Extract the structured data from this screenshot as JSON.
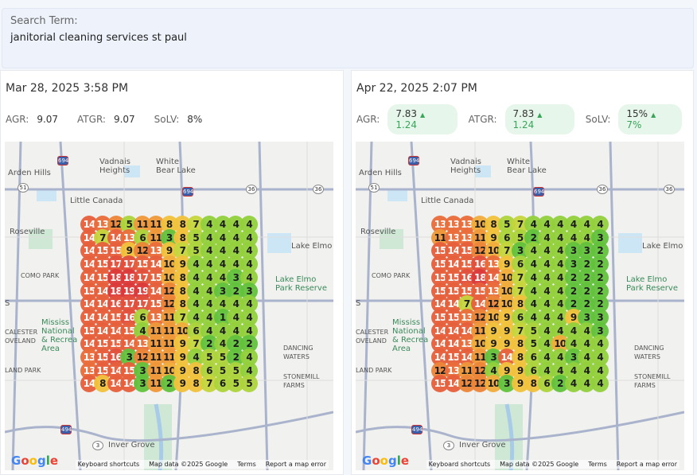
{
  "search": {
    "label": "Search Term:",
    "value": "janitorial cleaning services st paul"
  },
  "panels": [
    {
      "date": "Mar 28, 2025 3:58 PM",
      "stats": [
        {
          "label": "AGR:",
          "value": "9.07"
        },
        {
          "label": "ATGR:",
          "value": "9.07"
        },
        {
          "label": "SoLV:",
          "value": "8%"
        }
      ],
      "grid": [
        [
          14,
          13,
          12,
          5,
          11,
          11,
          8,
          8,
          7,
          4,
          4,
          4,
          4
        ],
        [
          14,
          7,
          14,
          13,
          6,
          11,
          3,
          8,
          5,
          4,
          4,
          4,
          4
        ],
        [
          14,
          15,
          15,
          9,
          12,
          13,
          9,
          7,
          5,
          4,
          4,
          4,
          4
        ],
        [
          14,
          15,
          17,
          17,
          15,
          14,
          10,
          9,
          4,
          4,
          4,
          4,
          4
        ],
        [
          14,
          15,
          18,
          18,
          17,
          15,
          10,
          8,
          4,
          4,
          4,
          3,
          4
        ],
        [
          15,
          14,
          18,
          19,
          19,
          14,
          12,
          8,
          4,
          4,
          3,
          2,
          3
        ],
        [
          14,
          14,
          16,
          17,
          17,
          15,
          12,
          8,
          4,
          4,
          4,
          4,
          4
        ],
        [
          14,
          14,
          15,
          16,
          6,
          13,
          11,
          7,
          4,
          4,
          1,
          4,
          4
        ],
        [
          15,
          14,
          14,
          15,
          4,
          11,
          11,
          10,
          6,
          4,
          4,
          4,
          4
        ],
        [
          14,
          15,
          15,
          14,
          13,
          11,
          11,
          9,
          7,
          2,
          4,
          2,
          2
        ],
        [
          13,
          15,
          16,
          3,
          12,
          11,
          11,
          9,
          4,
          5,
          5,
          2,
          4
        ],
        [
          13,
          15,
          14,
          15,
          3,
          11,
          10,
          9,
          8,
          6,
          5,
          5,
          4
        ],
        [
          14,
          8,
          14,
          14,
          3,
          11,
          2,
          9,
          8,
          7,
          6,
          5,
          5
        ]
      ]
    },
    {
      "date": "Apr 22, 2025 2:07 PM",
      "stats": [
        {
          "label": "AGR:",
          "value": "7.83",
          "delta": "1.24"
        },
        {
          "label": "ATGR:",
          "value": "7.83",
          "delta": "1.24"
        },
        {
          "label": "SoLV:",
          "value": "15%",
          "delta": "7%"
        }
      ],
      "grid": [
        [
          13,
          13,
          13,
          10,
          8,
          5,
          7,
          4,
          4,
          4,
          4,
          4,
          4
        ],
        [
          11,
          13,
          13,
          11,
          9,
          6,
          5,
          2,
          4,
          4,
          4,
          4,
          3
        ],
        [
          15,
          14,
          15,
          12,
          10,
          7,
          3,
          4,
          4,
          4,
          3,
          3,
          2
        ],
        [
          15,
          14,
          15,
          16,
          13,
          9,
          6,
          4,
          4,
          4,
          3,
          2,
          2
        ],
        [
          15,
          15,
          16,
          18,
          14,
          10,
          7,
          4,
          4,
          4,
          2,
          2,
          2
        ],
        [
          15,
          15,
          15,
          15,
          13,
          10,
          7,
          4,
          4,
          4,
          2,
          2,
          2
        ],
        [
          14,
          14,
          7,
          14,
          12,
          10,
          8,
          4,
          4,
          4,
          2,
          2,
          2
        ],
        [
          15,
          15,
          13,
          12,
          10,
          9,
          6,
          4,
          4,
          4,
          9,
          3,
          3
        ],
        [
          14,
          14,
          14,
          11,
          9,
          9,
          7,
          5,
          4,
          4,
          4,
          4,
          3
        ],
        [
          14,
          14,
          13,
          10,
          9,
          9,
          8,
          5,
          4,
          10,
          4,
          4,
          4
        ],
        [
          14,
          15,
          14,
          11,
          3,
          14,
          8,
          6,
          4,
          4,
          3,
          4,
          4
        ],
        [
          12,
          13,
          11,
          12,
          4,
          9,
          9,
          6,
          4,
          4,
          4,
          4,
          4
        ],
        [
          15,
          14,
          12,
          12,
          10,
          3,
          9,
          8,
          6,
          2,
          4,
          4,
          4
        ]
      ]
    }
  ],
  "delta_icon": "triangle-up-icon",
  "delta_color": "#3aa55a",
  "map": {
    "labels": [
      "Arden Hills",
      "Vadnais\nHeights",
      "White\nBear Lake",
      "Little Canada",
      "Roseville",
      "Lake Elmo",
      "COMO PARK",
      "Lake Elmo\nPark Reserve",
      "Mississ\nNational\n& Recrea\nArea",
      "CALESTER\nOVELAND",
      "DANCING\nWATERS",
      "LAND PARK",
      "STONEMILL\nFARMS",
      "Inver Grove",
      "S"
    ],
    "shields": [
      "694",
      "51",
      "694",
      "36",
      "36",
      "494",
      "3"
    ],
    "logo": "Google",
    "footer": [
      "Keyboard shortcuts",
      "Map data ©2025 Google",
      "Terms",
      "Report a map error"
    ]
  }
}
